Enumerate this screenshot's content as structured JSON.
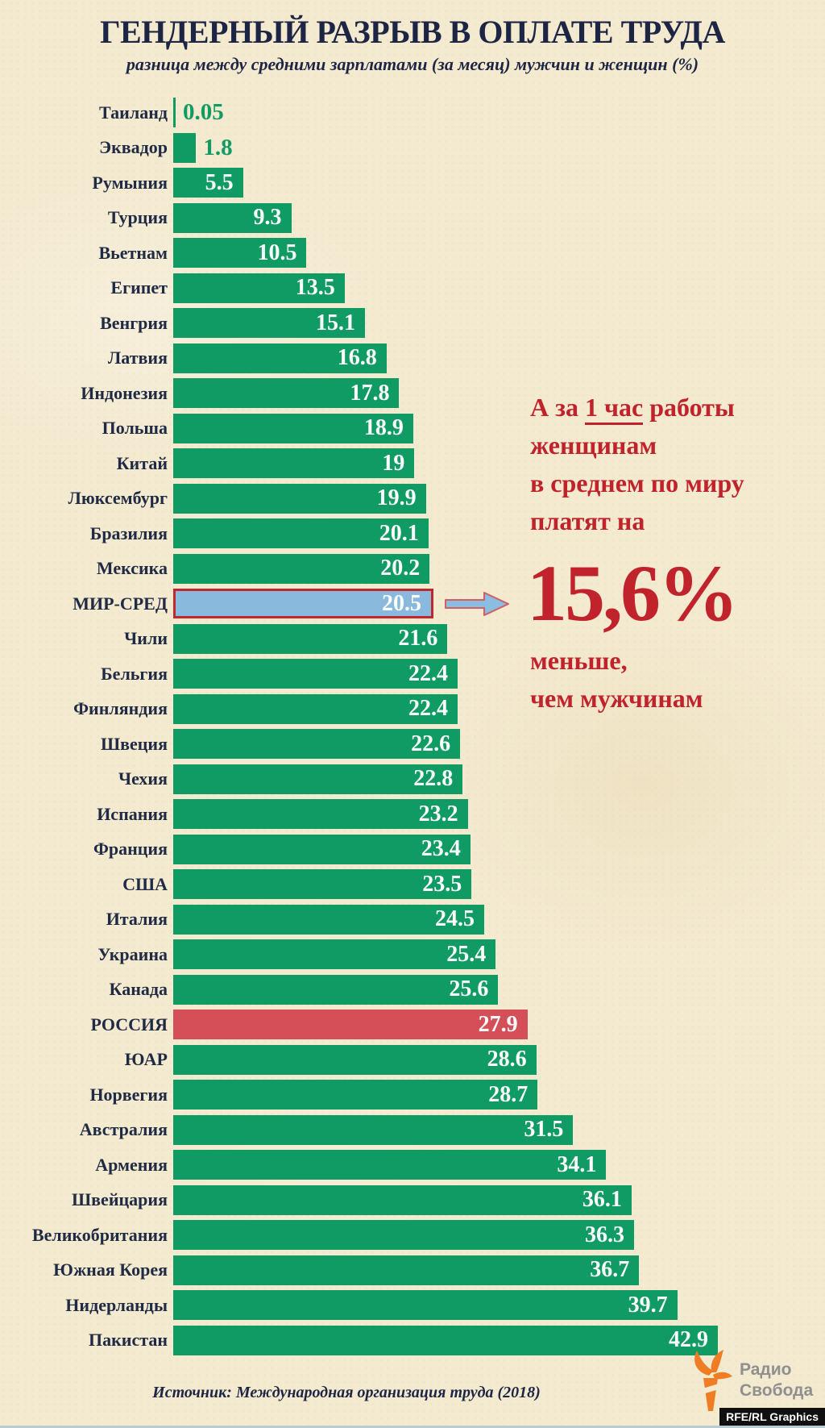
{
  "chart_data": {
    "type": "bar",
    "orientation": "horizontal",
    "title": "ГЕНДЕРНЫЙ РАЗРЫВ В ОПЛАТЕ ТРУДА",
    "subtitle": "разница между средними зарплатами (за месяц) мужчин и женщин (%)",
    "unit": "%",
    "xlim": [
      0,
      42.9
    ],
    "max_value": 42.9,
    "grid": false,
    "legend_position": "none",
    "bars": [
      {
        "label": "Таиланд",
        "value": 0.05,
        "display": "0.05",
        "type": "default",
        "value_outside": true
      },
      {
        "label": "Эквадор",
        "value": 1.8,
        "display": "1.8",
        "type": "default",
        "value_outside": true
      },
      {
        "label": "Румыния",
        "value": 5.5,
        "display": "5.5",
        "type": "default"
      },
      {
        "label": "Турция",
        "value": 9.3,
        "display": "9.3",
        "type": "default"
      },
      {
        "label": "Вьетнам",
        "value": 10.5,
        "display": "10.5",
        "type": "default"
      },
      {
        "label": "Египет",
        "value": 13.5,
        "display": "13.5",
        "type": "default"
      },
      {
        "label": "Венгрия",
        "value": 15.1,
        "display": "15.1",
        "type": "default"
      },
      {
        "label": "Латвия",
        "value": 16.8,
        "display": "16.8",
        "type": "default"
      },
      {
        "label": "Индонезия",
        "value": 17.8,
        "display": "17.8",
        "type": "default"
      },
      {
        "label": "Польша",
        "value": 18.9,
        "display": "18.9",
        "type": "default"
      },
      {
        "label": "Китай",
        "value": 19,
        "display": "19",
        "type": "default"
      },
      {
        "label": "Люксембург",
        "value": 19.9,
        "display": "19.9",
        "type": "default"
      },
      {
        "label": "Бразилия",
        "value": 20.1,
        "display": "20.1",
        "type": "default"
      },
      {
        "label": "Мексика",
        "value": 20.2,
        "display": "20.2",
        "type": "default"
      },
      {
        "label": "МИР-СРЕД",
        "value": 20.5,
        "display": "20.5",
        "type": "world"
      },
      {
        "label": "Чили",
        "value": 21.6,
        "display": "21.6",
        "type": "default"
      },
      {
        "label": "Бельгия",
        "value": 22.4,
        "display": "22.4",
        "type": "default"
      },
      {
        "label": "Финляндия",
        "value": 22.4,
        "display": "22.4",
        "type": "default"
      },
      {
        "label": "Швеция",
        "value": 22.6,
        "display": "22.6",
        "type": "default"
      },
      {
        "label": "Чехия",
        "value": 22.8,
        "display": "22.8",
        "type": "default"
      },
      {
        "label": "Испания",
        "value": 23.2,
        "display": "23.2",
        "type": "default"
      },
      {
        "label": "Франция",
        "value": 23.4,
        "display": "23.4",
        "type": "default"
      },
      {
        "label": "США",
        "value": 23.5,
        "display": "23.5",
        "type": "default"
      },
      {
        "label": "Италия",
        "value": 24.5,
        "display": "24.5",
        "type": "default"
      },
      {
        "label": "Украина",
        "value": 25.4,
        "display": "25.4",
        "type": "default"
      },
      {
        "label": "Канада",
        "value": 25.6,
        "display": "25.6",
        "type": "default"
      },
      {
        "label": "РОССИЯ",
        "value": 27.9,
        "display": "27.9",
        "type": "russia"
      },
      {
        "label": "ЮАР",
        "value": 28.6,
        "display": "28.6",
        "type": "default"
      },
      {
        "label": "Норвегия",
        "value": 28.7,
        "display": "28.7",
        "type": "default"
      },
      {
        "label": "Австралия",
        "value": 31.5,
        "display": "31.5",
        "type": "default"
      },
      {
        "label": "Армения",
        "value": 34.1,
        "display": "34.1",
        "type": "default"
      },
      {
        "label": "Швейцария",
        "value": 36.1,
        "display": "36.1",
        "type": "default"
      },
      {
        "label": "Великобритания",
        "value": 36.3,
        "display": "36.3",
        "type": "default"
      },
      {
        "label": "Южная Корея",
        "value": 36.7,
        "display": "36.7",
        "type": "default"
      },
      {
        "label": "Нидерланды",
        "value": 39.7,
        "display": "39.7",
        "type": "default"
      },
      {
        "label": "Пакистан",
        "value": 42.9,
        "display": "42.9",
        "type": "default"
      }
    ]
  },
  "annotation": {
    "line1_pre": "А за ",
    "line1_underline": "1 час",
    "line1_post": " работы",
    "line2": "женщинам",
    "line3": "в среднем по миру",
    "line4": "платят на",
    "big_value": "15,6%",
    "line5": "меньше,",
    "line6": "чем мужчинам"
  },
  "footer": {
    "source": "Источник: Международная организация труда (2018)",
    "logo_line1": "Радио",
    "logo_line2": "Свобода",
    "credit": "RFE/RL Graphics"
  },
  "icons": {
    "arrow": "arrow-right-icon",
    "torch": "torch-icon"
  },
  "colors": {
    "background": "#f4ead0",
    "bar_green": "#0f9b63",
    "bar_world_blue": "#89badd",
    "bar_world_border_red": "#c1272d",
    "bar_russia_red": "#d44f58",
    "accent_red_text": "#c0232b",
    "navy_text": "#1d2545",
    "logo_orange": "#ef7d23",
    "logo_gray": "#8f8f8f",
    "bottom_strip": "#b9ccd3"
  }
}
